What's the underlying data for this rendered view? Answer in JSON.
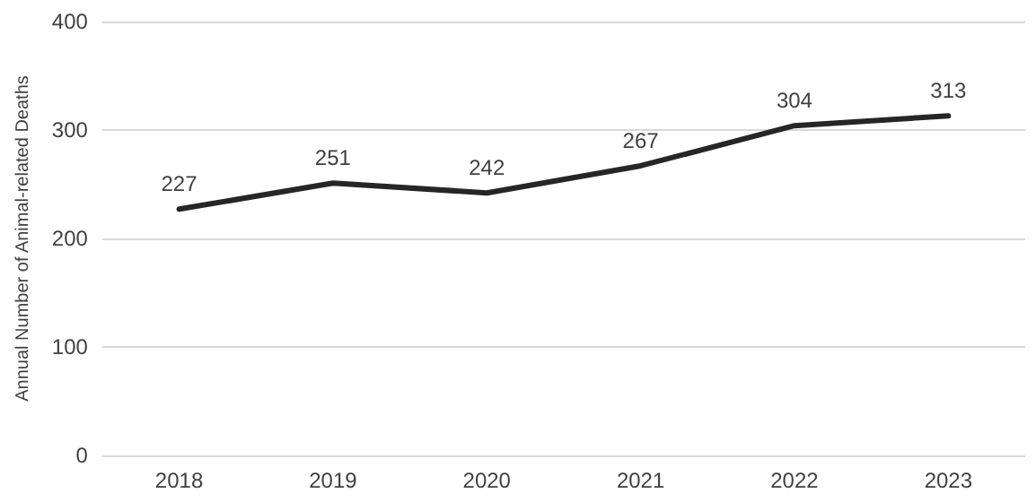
{
  "chart_data": {
    "type": "line",
    "ylabel": "Annual Number of Animal-related Deaths",
    "categories": [
      "2018",
      "2019",
      "2020",
      "2021",
      "2022",
      "2023"
    ],
    "series": [
      {
        "color": "#262626",
        "values": [
          227,
          251,
          242,
          267,
          304,
          313
        ]
      }
    ],
    "ylim": [
      0,
      400
    ],
    "yticks": [
      0,
      100,
      200,
      300,
      400
    ],
    "grid": "y",
    "marker": "none",
    "line_style": "solid",
    "data_labels": true
  }
}
